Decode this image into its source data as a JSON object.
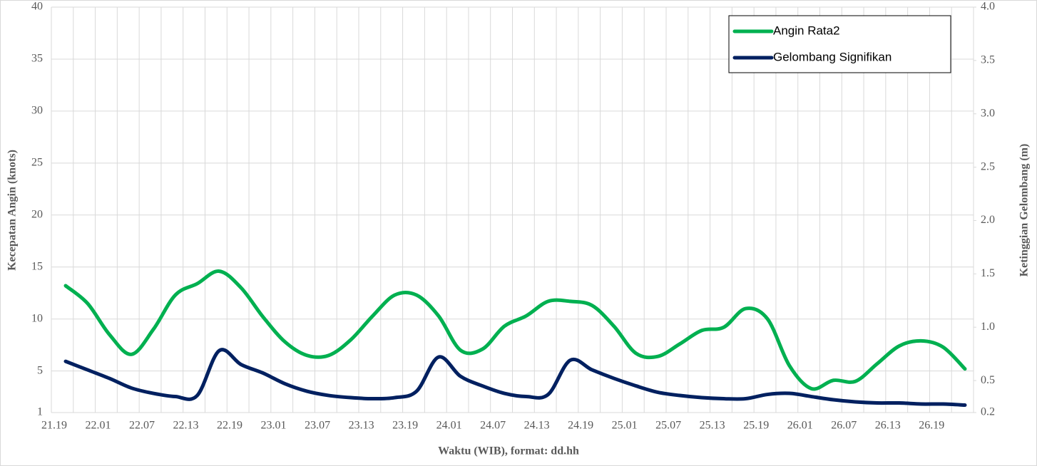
{
  "chart_data": {
    "type": "line",
    "x_label": "Waktu (WIB), format: dd.hh",
    "y_label": "Kecepatan Angin (knots)",
    "y2_label": "Ketinggian Gelombang (m)",
    "categories": [
      "21.19",
      null,
      "22.01",
      null,
      "22.07",
      null,
      "22.13",
      null,
      "22.19",
      null,
      "23.01",
      null,
      "23.07",
      null,
      "23.13",
      null,
      "23.19",
      null,
      "24.01",
      null,
      "24.07",
      null,
      "24.13",
      null,
      "24.19",
      null,
      "25.01",
      null,
      "25.07",
      null,
      "25.13",
      null,
      "25.19",
      null,
      "26.01",
      null,
      "26.07",
      null,
      "26.13",
      null,
      "26.19",
      null
    ],
    "series": [
      {
        "name": "Angin Rata2",
        "color": "#00b050",
        "axis": "y",
        "values": [
          13.2,
          11.5,
          8.5,
          6.6,
          9,
          12.3,
          13.4,
          14.6,
          13,
          10.2,
          7.8,
          6.5,
          6.5,
          8,
          10.3,
          12.3,
          12.3,
          10.3,
          7,
          7.1,
          9.3,
          10.3,
          11.7,
          11.7,
          11.3,
          9.3,
          6.7,
          6.4,
          7.6,
          8.9,
          9.2,
          11,
          10,
          5.5,
          3.3,
          4.1,
          4,
          5.7,
          7.4,
          7.9,
          7.3,
          5.2
        ]
      },
      {
        "name": "Gelombang Signifikan",
        "color": "#002060",
        "axis": "y2",
        "values": [
          0.68,
          0.6,
          0.52,
          0.43,
          0.38,
          0.35,
          0.36,
          0.78,
          0.65,
          0.57,
          0.47,
          0.4,
          0.36,
          0.34,
          0.33,
          0.34,
          0.4,
          0.72,
          0.54,
          0.45,
          0.38,
          0.35,
          0.37,
          0.69,
          0.6,
          0.52,
          0.45,
          0.39,
          0.36,
          0.34,
          0.33,
          0.33,
          0.37,
          0.38,
          0.35,
          0.32,
          0.3,
          0.29,
          0.29,
          0.28,
          0.28,
          0.27
        ]
      }
    ],
    "ylim": [
      1,
      40
    ],
    "yticks": [
      1,
      5,
      10,
      15,
      20,
      25,
      30,
      35,
      40
    ],
    "y2lim": [
      0.2,
      4.0
    ],
    "y2ticks": [
      0.2,
      0.5,
      {
        "value": 1.0,
        "label": "1.0"
      },
      1.5,
      {
        "value": 2.0,
        "label": "2.0"
      },
      2.5,
      {
        "value": 3.0,
        "label": "3.0"
      },
      3.5,
      {
        "value": 4.0,
        "label": "4.0"
      }
    ],
    "grid": true,
    "smooth": true,
    "legend": "top-right"
  }
}
